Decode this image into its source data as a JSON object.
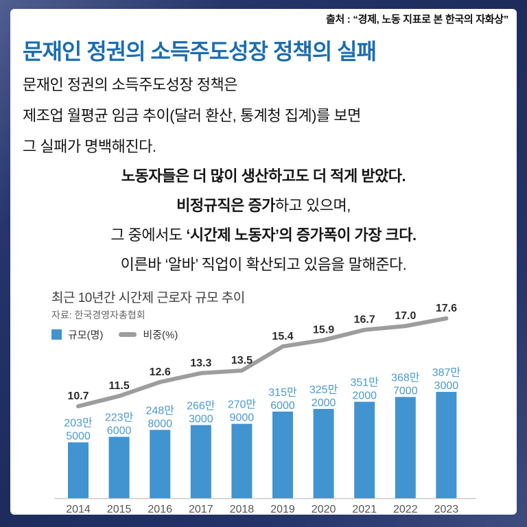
{
  "page": {
    "source_attribution": "출처 : “경제, 노동 지표로 본 한국의 자화상”",
    "title": "문재인 정권의 소득주도성장 정책의 실패",
    "body_lines": [
      "문재인 정권의 소득주도성장 정책은",
      "제조업 월평균 임금 추이(달러 환산, 통계청 집계)를 보면",
      "그 실패가 명백해진다."
    ],
    "emphasis_lines": [
      {
        "segments": [
          {
            "text": "노동자들은 더 많이 생산하고도 더 적게 받았다.",
            "bold": true
          }
        ]
      },
      {
        "segments": [
          {
            "text": "비정규직은 증가",
            "bold": true
          },
          {
            "text": "하고 있으며,",
            "bold": false
          }
        ]
      },
      {
        "segments": [
          {
            "text": "그 중에서도 ",
            "bold": false
          },
          {
            "text": "‘시간제 노동자’의 증가폭이 가장 크다.",
            "bold": true
          }
        ]
      },
      {
        "segments": [
          {
            "text": "이른바 ‘알바’ 직업이 확산되고 있음을 말해준다.",
            "bold": false
          }
        ]
      }
    ]
  },
  "colors": {
    "title_blue": "#1a6db2",
    "bar_blue": "#4194d0",
    "bar_label_blue": "#4a99d3",
    "line_gray": "#9d9d9d",
    "percent_label": "#2b2b2b",
    "axis_gray": "#c9c9c9",
    "year_gray": "#555555",
    "frame_navy": "#1d2c5c"
  },
  "chart_data": {
    "type": "bar+line",
    "title": "최근 10년간 시간제 근로자 규모 추이",
    "source": "자료: 한국경영자총협회",
    "grid": false,
    "legend_position": "top-left",
    "legend": [
      {
        "label": "규모(명)",
        "type": "square"
      },
      {
        "label": "비중(%)",
        "type": "dash"
      }
    ],
    "categories": [
      "2014",
      "2015",
      "2016",
      "2017",
      "2018",
      "2019",
      "2020",
      "2021",
      "2022",
      "2023"
    ],
    "series": [
      {
        "name": "규모(명)",
        "type": "bar",
        "unit": "만 명",
        "values": [
          203.5,
          223.6,
          248.8,
          266.3,
          270.9,
          315.6,
          325.2,
          351.2,
          368.7,
          387.3
        ],
        "labels": [
          [
            "203만",
            "5000"
          ],
          [
            "223만",
            "6000"
          ],
          [
            "248만",
            "8000"
          ],
          [
            "266만",
            "3000"
          ],
          [
            "270만",
            "9000"
          ],
          [
            "315만",
            "6000"
          ],
          [
            "325만",
            "2000"
          ],
          [
            "351만",
            "2000"
          ],
          [
            "368만",
            "7000"
          ],
          [
            "387만",
            "3000"
          ]
        ]
      },
      {
        "name": "비중(%)",
        "type": "line",
        "unit": "%",
        "values": [
          10.7,
          11.5,
          12.6,
          13.3,
          13.5,
          15.4,
          15.9,
          16.7,
          17.0,
          17.6
        ]
      }
    ]
  }
}
